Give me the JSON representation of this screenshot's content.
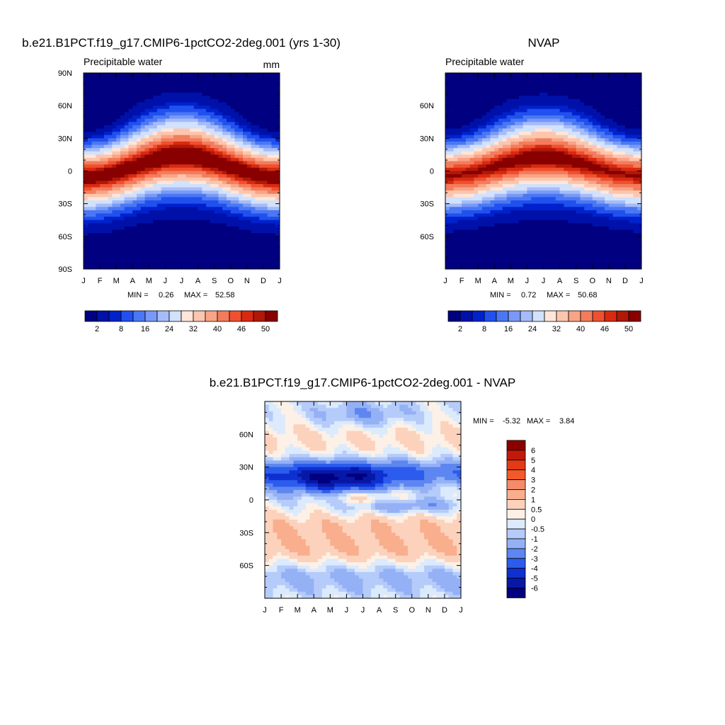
{
  "chart_data": [
    {
      "type": "heatmap",
      "title": "b.e21.B1PCT.f19_g17.CMIP6-1pctCO2-2deg.001 (yrs 1-30)",
      "subtitle_left": "Precipitable water",
      "subtitle_right": "mm",
      "x_tick_labels": [
        "J",
        "F",
        "M",
        "A",
        "M",
        "J",
        "J",
        "A",
        "S",
        "O",
        "N",
        "D",
        "J"
      ],
      "y_tick_labels": [
        "90N",
        "60N",
        "30N",
        "0",
        "30S",
        "60S",
        "90S"
      ],
      "ylim": [
        -90,
        90
      ],
      "stats": {
        "min_label": "MIN =",
        "min": "0.26",
        "max_label": "MAX =",
        "max": "52.58"
      },
      "colorbar": {
        "orientation": "horizontal",
        "labels": [
          "2",
          "8",
          "16",
          "24",
          "32",
          "40",
          "46",
          "50"
        ],
        "colors": [
          "#000080",
          "#0011aa",
          "#0022cc",
          "#2150ee",
          "#4a78f4",
          "#7899f7",
          "#a6bcf9",
          "#d2e1fc",
          "#ffe6d9",
          "#fcc6ae",
          "#f9a486",
          "#f37c5c",
          "#ef5030",
          "#d82a10",
          "#b01808",
          "#880000"
        ]
      }
    },
    {
      "type": "heatmap",
      "title": "NVAP",
      "subtitle_left": "Precipitable water",
      "x_tick_labels": [
        "J",
        "F",
        "M",
        "A",
        "M",
        "J",
        "J",
        "A",
        "S",
        "O",
        "N",
        "D",
        "J"
      ],
      "y_tick_labels": [
        "60N",
        "30N",
        "0",
        "30S",
        "60S"
      ],
      "ylim": [
        -90,
        90
      ],
      "stats": {
        "min_label": "MIN =",
        "min": "0.72",
        "max_label": "MAX =",
        "max": "50.68"
      },
      "colorbar": {
        "orientation": "horizontal",
        "labels": [
          "2",
          "8",
          "16",
          "24",
          "32",
          "40",
          "46",
          "50"
        ],
        "colors": [
          "#000080",
          "#0011aa",
          "#0022cc",
          "#2150ee",
          "#4a78f4",
          "#7899f7",
          "#a6bcf9",
          "#d2e1fc",
          "#ffe6d9",
          "#fcc6ae",
          "#f9a486",
          "#f37c5c",
          "#ef5030",
          "#d82a10",
          "#b01808",
          "#880000"
        ]
      }
    },
    {
      "type": "heatmap",
      "title": "b.e21.B1PCT.f19_g17.CMIP6-1pctCO2-2deg.001 - NVAP",
      "x_tick_labels": [
        "J",
        "F",
        "M",
        "A",
        "M",
        "J",
        "J",
        "A",
        "S",
        "O",
        "N",
        "D",
        "J"
      ],
      "y_tick_labels": [
        "60N",
        "30N",
        "0",
        "30S",
        "60S"
      ],
      "ylim": [
        -90,
        90
      ],
      "stats": {
        "min_label": "MIN =",
        "min": "-5.32",
        "max_label": "MAX =",
        "max": "3.84"
      },
      "colorbar": {
        "orientation": "vertical",
        "labels": [
          "6",
          "5",
          "4",
          "3",
          "2",
          "1",
          "0.5",
          "0",
          "-0.5",
          "-1",
          "-2",
          "-3",
          "-4",
          "-5",
          "-6"
        ],
        "colors": [
          "#8b0000",
          "#c21a0a",
          "#e33a18",
          "#f25a2a",
          "#f58b68",
          "#f9ae8d",
          "#fcd2bd",
          "#fdf0e6",
          "#dbeafc",
          "#b5cbfa",
          "#94b1f6",
          "#5e86f0",
          "#2c5ced",
          "#0f30d0",
          "#0818a6",
          "#000080"
        ]
      }
    }
  ]
}
